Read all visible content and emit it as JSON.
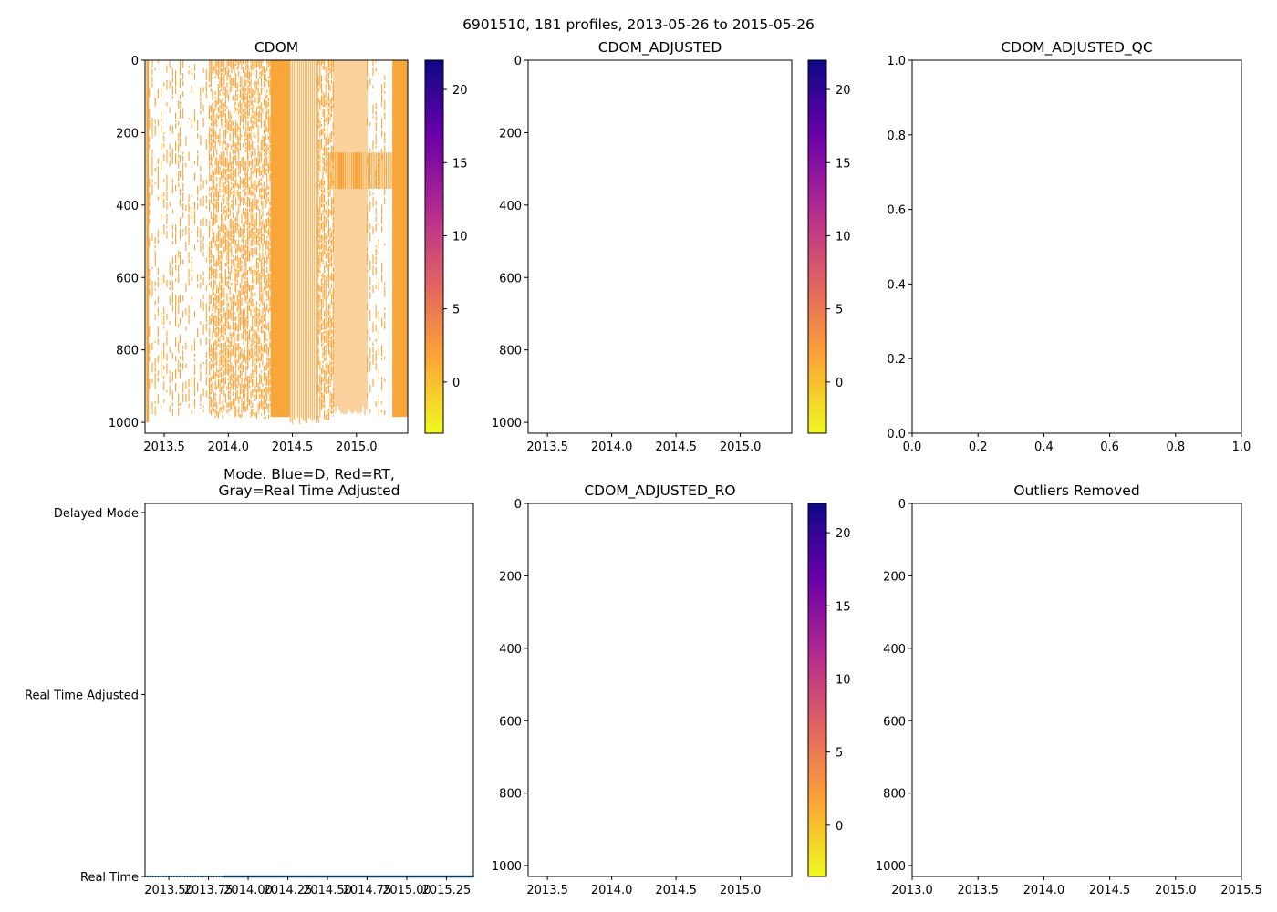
{
  "figure": {
    "suptitle": "6901510, 181 profiles, 2013-05-26 to 2015-05-26"
  },
  "colors": {
    "data_fill": "#f8a53a",
    "axis": "#000000",
    "mode_dots": "#1f77b4",
    "cmap": [
      "#f0f921",
      "#fca636",
      "#e16462",
      "#b12a90",
      "#6a00a8",
      "#0d0887"
    ]
  },
  "chart_data": [
    {
      "id": "cdom",
      "type": "heatmap",
      "title": "CDOM",
      "xlim": [
        2013.35,
        2015.4
      ],
      "ylim": [
        1030,
        0
      ],
      "xticks": [
        2013.5,
        2014.0,
        2014.5,
        2015.0
      ],
      "xtick_labels": [
        "2013.5",
        "2014.0",
        "2014.5",
        "2015.0"
      ],
      "yticks": [
        0,
        200,
        400,
        600,
        800,
        1000
      ],
      "ytick_labels": [
        "0",
        "200",
        "400",
        "600",
        "800",
        "1000"
      ],
      "colorbar": {
        "vmin": -3.5,
        "vmax": 22,
        "ticks": [
          0,
          5,
          10,
          15,
          20
        ],
        "tick_labels": [
          "0",
          "5",
          "10",
          "15",
          "20"
        ]
      },
      "profile_blocks": [
        {
          "x0": 2013.36,
          "x1": 2013.38,
          "depth_max": 1000
        },
        {
          "x0": 2013.38,
          "x1": 2013.62,
          "depth_max": 990,
          "pattern": "sparse"
        },
        {
          "x0": 2013.62,
          "x1": 2013.85,
          "depth_max": 985,
          "pattern": "sparse"
        },
        {
          "x0": 2013.85,
          "x1": 2014.15,
          "depth_max": 990,
          "pattern": "dense"
        },
        {
          "x0": 2014.15,
          "x1": 2014.33,
          "depth_max": 990,
          "pattern": "dense"
        },
        {
          "x0": 2014.33,
          "x1": 2014.48,
          "depth_max": 985,
          "pattern": "solid"
        },
        {
          "x0": 2014.48,
          "x1": 2014.7,
          "depth_max": 1010,
          "pattern": "lines"
        },
        {
          "x0": 2014.7,
          "x1": 2014.82,
          "depth_max": 1005,
          "pattern": "dense"
        },
        {
          "x0": 2014.82,
          "x1": 2015.08,
          "depth_max": 980,
          "pattern": "lines"
        },
        {
          "x0": 2015.08,
          "x1": 2015.22,
          "depth_max": 985,
          "pattern": "sparse"
        },
        {
          "x0": 2015.28,
          "x1": 2015.4,
          "depth_max": 985,
          "pattern": "solid"
        }
      ]
    },
    {
      "id": "cdom_adjusted",
      "type": "heatmap",
      "title": "CDOM_ADJUSTED",
      "xlim": [
        2013.35,
        2015.4
      ],
      "ylim": [
        1030,
        0
      ],
      "xticks": [
        2013.5,
        2014.0,
        2014.5,
        2015.0
      ],
      "xtick_labels": [
        "2013.5",
        "2014.0",
        "2014.5",
        "2015.0"
      ],
      "yticks": [
        0,
        200,
        400,
        600,
        800,
        1000
      ],
      "ytick_labels": [
        "0",
        "200",
        "400",
        "600",
        "800",
        "1000"
      ],
      "colorbar": {
        "vmin": -3.5,
        "vmax": 22,
        "ticks": [
          0,
          5,
          10,
          15,
          20
        ],
        "tick_labels": [
          "0",
          "5",
          "10",
          "15",
          "20"
        ]
      }
    },
    {
      "id": "cdom_adjusted_qc",
      "type": "line",
      "title": "CDOM_ADJUSTED_QC",
      "xlim": [
        0.0,
        1.0
      ],
      "ylim": [
        0.0,
        1.0
      ],
      "xticks": [
        0.0,
        0.2,
        0.4,
        0.6,
        0.8,
        1.0
      ],
      "xtick_labels": [
        "0.0",
        "0.2",
        "0.4",
        "0.6",
        "0.8",
        "1.0"
      ],
      "yticks": [
        0.0,
        0.2,
        0.4,
        0.6,
        0.8,
        1.0
      ],
      "ytick_labels": [
        "0.0",
        "0.2",
        "0.4",
        "0.6",
        "0.8",
        "1.0"
      ]
    },
    {
      "id": "mode",
      "type": "scatter",
      "title": "Mode. Blue=D, Red=RT,",
      "title2": "Gray=Real Time Adjusted",
      "xlim": [
        2013.35,
        2015.42
      ],
      "ylim": [
        0,
        2.05
      ],
      "xticks": [
        2013.5,
        2013.75,
        2014.0,
        2014.25,
        2014.5,
        2014.75,
        2015.0,
        2015.25
      ],
      "xtick_labels": [
        "2013.50",
        "2013.75",
        "2014.00",
        "2014.25",
        "2014.50",
        "2014.75",
        "2015.00",
        "2015.25"
      ],
      "yticks": [
        0,
        1,
        2
      ],
      "ytick_labels": [
        "Real Time",
        "Real Time Adjusted",
        "Delayed Mode"
      ],
      "points_y": 0,
      "sparse_range": [
        2013.35,
        2013.85
      ],
      "sparse_step": 0.0167,
      "dense_range": [
        2013.85,
        2015.42
      ],
      "dense_step": 0.0056
    },
    {
      "id": "cdom_adjusted_ro",
      "type": "heatmap",
      "title": "CDOM_ADJUSTED_RO",
      "xlim": [
        2013.35,
        2015.4
      ],
      "ylim": [
        1030,
        0
      ],
      "xticks": [
        2013.5,
        2014.0,
        2014.5,
        2015.0
      ],
      "xtick_labels": [
        "2013.5",
        "2014.0",
        "2014.5",
        "2015.0"
      ],
      "yticks": [
        0,
        200,
        400,
        600,
        800,
        1000
      ],
      "ytick_labels": [
        "0",
        "200",
        "400",
        "600",
        "800",
        "1000"
      ],
      "colorbar": {
        "vmin": -3.5,
        "vmax": 22,
        "ticks": [
          0,
          5,
          10,
          15,
          20
        ],
        "tick_labels": [
          "0",
          "5",
          "10",
          "15",
          "20"
        ]
      }
    },
    {
      "id": "outliers_removed",
      "type": "scatter",
      "title": "Outliers Removed",
      "xlim": [
        2013.0,
        2015.5
      ],
      "ylim": [
        1030,
        0
      ],
      "xticks": [
        2013.0,
        2013.5,
        2014.0,
        2014.5,
        2015.0,
        2015.5
      ],
      "xtick_labels": [
        "2013.0",
        "2013.5",
        "2014.0",
        "2014.5",
        "2015.0",
        "2015.5"
      ],
      "yticks": [
        0,
        200,
        400,
        600,
        800,
        1000
      ],
      "ytick_labels": [
        "0",
        "200",
        "400",
        "600",
        "800",
        "1000"
      ]
    }
  ]
}
